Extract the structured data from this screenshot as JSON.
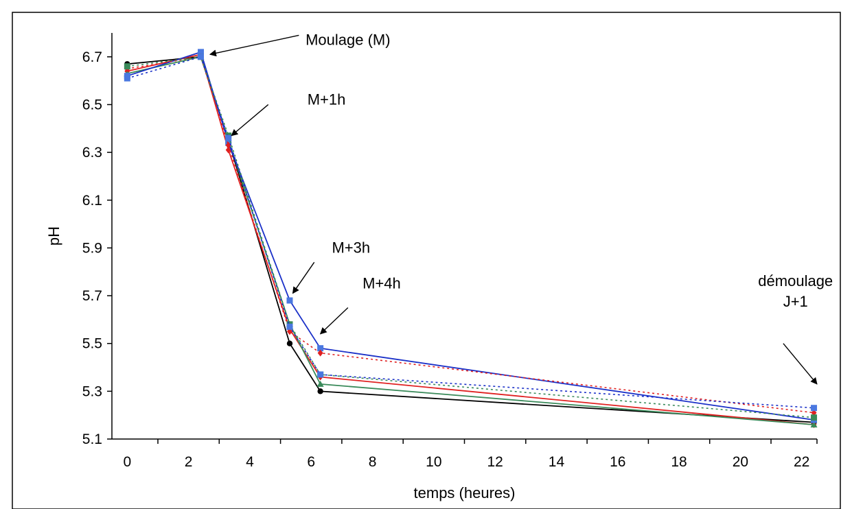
{
  "chart_data": {
    "type": "line",
    "title": "",
    "xlabel": "temps (heures)",
    "ylabel": "pH",
    "xlim": [
      -0.5,
      22.5
    ],
    "ylim": [
      5.1,
      6.8
    ],
    "x_ticks": [
      "0",
      "2",
      "4",
      "6",
      "8",
      "10",
      "12",
      "14",
      "16",
      "18",
      "20",
      "22"
    ],
    "y_ticks": [
      "5.1",
      "5.3",
      "5.5",
      "5.7",
      "5.9",
      "6.1",
      "6.3",
      "6.5",
      "6.7"
    ],
    "grid": false,
    "legend": "none",
    "series": [
      {
        "color": "#000000",
        "dashed": false,
        "marker": "circle",
        "points": [
          [
            0,
            6.67
          ],
          [
            2.4,
            6.7
          ],
          [
            3.3,
            6.35
          ],
          [
            5.3,
            5.5
          ],
          [
            6.3,
            5.3
          ],
          [
            22.4,
            5.17
          ]
        ]
      },
      {
        "color": "#e02020",
        "dashed": false,
        "marker": "diamond",
        "points": [
          [
            0,
            6.64
          ],
          [
            2.4,
            6.71
          ],
          [
            3.3,
            6.31
          ],
          [
            5.3,
            5.56
          ],
          [
            6.3,
            5.36
          ],
          [
            22.4,
            5.16
          ]
        ]
      },
      {
        "color": "#3a8a5a",
        "dashed": false,
        "marker": "triangle",
        "points": [
          [
            0,
            6.63
          ],
          [
            2.4,
            6.7
          ],
          [
            3.3,
            6.35
          ],
          [
            5.3,
            5.58
          ],
          [
            6.3,
            5.33
          ],
          [
            22.4,
            5.16
          ]
        ]
      },
      {
        "color": "#1a30c8",
        "dashed": false,
        "marker": "square",
        "points": [
          [
            0,
            6.62
          ],
          [
            2.4,
            6.72
          ],
          [
            3.3,
            6.34
          ],
          [
            5.3,
            5.68
          ],
          [
            6.3,
            5.48
          ],
          [
            22.4,
            5.18
          ]
        ]
      },
      {
        "color": "#e02020",
        "dashed": true,
        "marker": "diamond",
        "points": [
          [
            0,
            6.65
          ],
          [
            2.4,
            6.7
          ],
          [
            3.3,
            6.33
          ],
          [
            5.3,
            5.55
          ],
          [
            6.3,
            5.46
          ],
          [
            22.4,
            5.21
          ]
        ]
      },
      {
        "color": "#3a8a5a",
        "dashed": true,
        "marker": "square",
        "points": [
          [
            0,
            6.66
          ],
          [
            2.4,
            6.7
          ],
          [
            3.3,
            6.37
          ],
          [
            5.3,
            5.58
          ],
          [
            6.3,
            5.37
          ],
          [
            22.4,
            5.19
          ]
        ]
      },
      {
        "color": "#1a30c8",
        "dashed": true,
        "marker": "square",
        "points": [
          [
            0,
            6.61
          ],
          [
            2.4,
            6.7
          ],
          [
            3.3,
            6.36
          ],
          [
            5.3,
            5.57
          ],
          [
            6.3,
            5.37
          ],
          [
            22.4,
            5.23
          ]
        ]
      }
    ],
    "annotations": [
      {
        "lines": [
          "Moulage (M)"
        ],
        "text_x": 7.2,
        "text_y": 6.75,
        "align": "middle",
        "arrow_from": [
          5.6,
          6.79
        ],
        "arrow_to": [
          2.7,
          6.71
        ]
      },
      {
        "lines": [
          "M+1h"
        ],
        "text_x": 6.5,
        "text_y": 6.5,
        "align": "middle",
        "arrow_from": [
          4.6,
          6.5
        ],
        "arrow_to": [
          3.4,
          6.37
        ]
      },
      {
        "lines": [
          "M+3h"
        ],
        "text_x": 7.3,
        "text_y": 5.88,
        "align": "middle",
        "arrow_from": [
          6.1,
          5.84
        ],
        "arrow_to": [
          5.4,
          5.71
        ]
      },
      {
        "lines": [
          "M+4h"
        ],
        "text_x": 8.3,
        "text_y": 5.73,
        "align": "middle",
        "arrow_from": [
          7.2,
          5.65
        ],
        "arrow_to": [
          6.3,
          5.54
        ]
      },
      {
        "lines": [
          "démoulage",
          "J+1"
        ],
        "text_x": 21.8,
        "text_y": 5.74,
        "align": "middle",
        "arrow_from": [
          21.4,
          5.5
        ],
        "arrow_to": [
          22.5,
          5.33
        ]
      }
    ]
  }
}
